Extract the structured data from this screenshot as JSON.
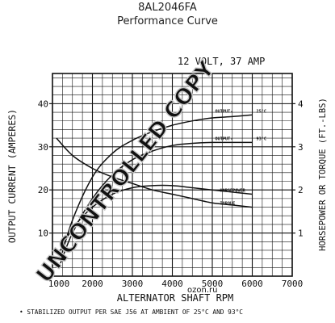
{
  "header": {
    "part_number": "8AL2046FA",
    "subtitle": "Performance Curve"
  },
  "chart_data": {
    "type": "line",
    "title": "12 VOLT, 37 AMP",
    "xlabel": "ALTERNATOR SHAFT RPM",
    "ylabel": "OUTPUT CURRENT (AMPERES)",
    "y2label": "HORSEPOWER OR TORQUE (FT.-LBS)",
    "xlim": [
      1000,
      7000
    ],
    "ylim": [
      0,
      47
    ],
    "y2lim": [
      0,
      4.7
    ],
    "x_ticks": [
      "1000",
      "2000",
      "3000",
      "4000",
      "5000",
      "6000",
      "7000"
    ],
    "y_ticks": [
      "10",
      "20",
      "30",
      "40"
    ],
    "y2_ticks": [
      "1",
      "2",
      "3",
      "4"
    ],
    "grid": true,
    "footnote": "• STABILIZED OUTPUT PER SAE J56 AT AMBIENT OF 25°C AND 93°C",
    "series": [
      {
        "name": "OUTPUT - 25°C",
        "label": "OUTPUT-",
        "label_suffix": "25°C",
        "axis": "left",
        "x": [
          1200,
          1500,
          2000,
          2500,
          3000,
          3500,
          4000,
          4500,
          5000,
          5500,
          6000
        ],
        "y": [
          4,
          13,
          23,
          28.5,
          31.5,
          33.5,
          35,
          36,
          36.7,
          37,
          37.4
        ]
      },
      {
        "name": "OUTPUT - 93°C",
        "label": "OUTPUT-",
        "label_suffix": "93°C",
        "axis": "left",
        "x": [
          1200,
          1500,
          2000,
          2500,
          3000,
          3500,
          4000,
          4500,
          5000,
          5500,
          6000
        ],
        "y": [
          3,
          10,
          18,
          23.5,
          27,
          29,
          30.3,
          30.8,
          31,
          31,
          31
        ]
      },
      {
        "name": "HORSEPOWER",
        "label": "HORSEPOWER",
        "axis": "right",
        "x": [
          1200,
          1500,
          2000,
          2500,
          3000,
          3500,
          4000,
          4500,
          5000,
          5500,
          6000
        ],
        "y": [
          0.6,
          1.1,
          1.6,
          1.9,
          2.05,
          2.1,
          2.1,
          2.05,
          2.0,
          1.95,
          1.9
        ]
      },
      {
        "name": "TORQUE",
        "label": "TORQUE",
        "axis": "right",
        "x": [
          1100,
          1500,
          2000,
          2500,
          3000,
          3500,
          4000,
          4500,
          5000,
          5500,
          6000
        ],
        "y": [
          3.2,
          2.8,
          2.5,
          2.3,
          2.15,
          2.0,
          1.9,
          1.8,
          1.7,
          1.65,
          1.6
        ]
      }
    ]
  },
  "watermark": {
    "text": "UNCONTROLLED COPY",
    "site": "ozon.ru"
  },
  "colors": {
    "ink": "#111111",
    "watermark": "#c8c8c8"
  }
}
